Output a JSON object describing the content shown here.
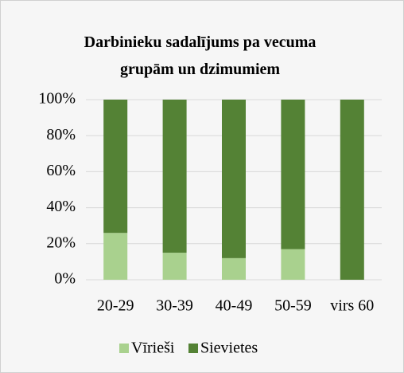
{
  "chart_data": {
    "type": "stacked_bar",
    "title": "Darbinieku sadalījums pa vecuma grupām un dzimumiem",
    "categories": [
      "20-29",
      "30-39",
      "40-49",
      "50-59",
      "virs 60"
    ],
    "series": [
      {
        "name": "Vīrieši",
        "color": "#a9d18e",
        "values": [
          26,
          15,
          12,
          17,
          0
        ]
      },
      {
        "name": "Sievietes",
        "color": "#548235",
        "values": [
          74,
          85,
          88,
          83,
          100
        ]
      }
    ],
    "ylim": [
      0,
      100
    ],
    "yticks": [
      {
        "value": 0,
        "label": "0%"
      },
      {
        "value": 20,
        "label": "20%"
      },
      {
        "value": 40,
        "label": "40%"
      },
      {
        "value": 60,
        "label": "60%"
      },
      {
        "value": 80,
        "label": "80%"
      },
      {
        "value": 100,
        "label": "100%"
      }
    ],
    "grid": true,
    "legend": "bottom"
  }
}
